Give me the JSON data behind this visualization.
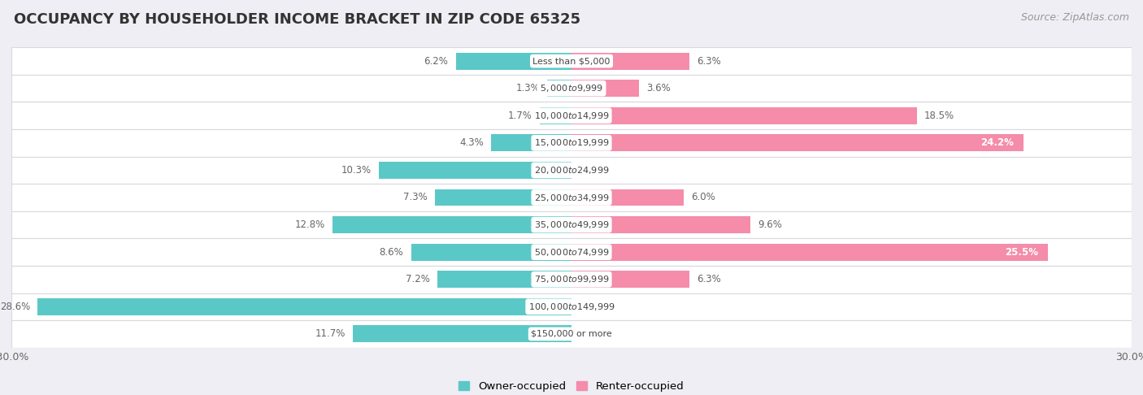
{
  "title": "OCCUPANCY BY HOUSEHOLDER INCOME BRACKET IN ZIP CODE 65325",
  "source": "Source: ZipAtlas.com",
  "categories": [
    "Less than $5,000",
    "$5,000 to $9,999",
    "$10,000 to $14,999",
    "$15,000 to $19,999",
    "$20,000 to $24,999",
    "$25,000 to $34,999",
    "$35,000 to $49,999",
    "$50,000 to $74,999",
    "$75,000 to $99,999",
    "$100,000 to $149,999",
    "$150,000 or more"
  ],
  "owner_values": [
    6.2,
    1.3,
    1.7,
    4.3,
    10.3,
    7.3,
    12.8,
    8.6,
    7.2,
    28.6,
    11.7
  ],
  "renter_values": [
    6.3,
    3.6,
    18.5,
    24.2,
    0.0,
    6.0,
    9.6,
    25.5,
    6.3,
    0.0,
    0.0
  ],
  "owner_color": "#5bc8c8",
  "renter_color": "#f48caa",
  "bar_height": 0.62,
  "xlim": [
    -30.0,
    30.0
  ],
  "legend_labels": [
    "Owner-occupied",
    "Renter-occupied"
  ],
  "background_color": "#eeeef4",
  "row_bg_color": "#ffffff",
  "row_border_color": "#d8d8e0",
  "title_fontsize": 13,
  "source_fontsize": 9,
  "label_fontsize": 8.5,
  "category_fontsize": 8.0,
  "value_color": "#666666"
}
